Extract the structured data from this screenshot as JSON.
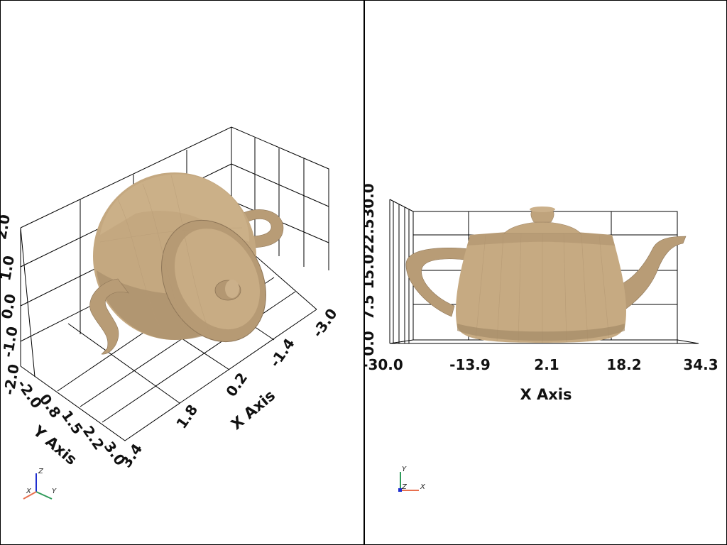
{
  "colors": {
    "background": "#ffffff",
    "mesh": "#c9ad86",
    "mesh_shadow": "#8d7557",
    "mesh_highlight": "#d9bf98",
    "axis_x": "#e8704f",
    "axis_y": "#2f9a5a",
    "axis_z": "#1f2fd0"
  },
  "left_view": {
    "x_axis_title": "X Axis",
    "y_axis_title": "Y Axis",
    "x_ticks": [
      "3.4",
      "1.8",
      "0.2",
      "-1.4",
      "-3.0"
    ],
    "y_ticks": [
      "-2.0",
      "0.8",
      "1.5",
      "2.2",
      "3.0"
    ],
    "z_ticks": [
      "-2.0",
      "-1.0",
      "0.0",
      "1.0",
      "2.0"
    ],
    "orientation": {
      "x": "X",
      "y": "Y",
      "z": "Z"
    },
    "mesh_icon": "teapot"
  },
  "right_view": {
    "x_axis_title": "X Axis",
    "x_ticks": [
      "-30.0",
      "-13.9",
      "2.1",
      "18.2",
      "34.3"
    ],
    "y_ticks": [
      "0.0",
      "7.5",
      "15.0",
      "22.5",
      "30.0"
    ],
    "orientation": {
      "x": "X",
      "y": "Y",
      "z": "Z"
    },
    "mesh_icon": "teapot"
  }
}
